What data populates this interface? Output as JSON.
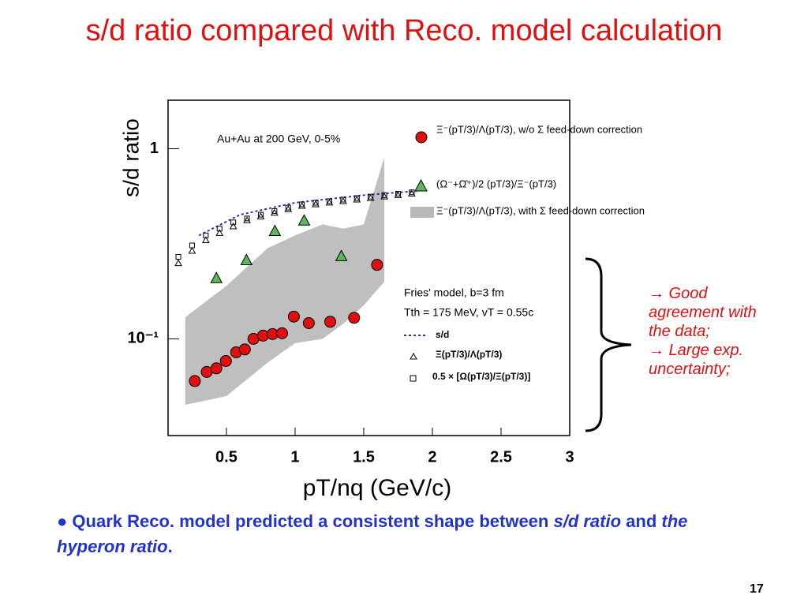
{
  "slide": {
    "title": "s/d ratio compared with Reco. model calculation",
    "note": [
      "→ Good agreement with the data;",
      "→ Large exp. uncertainty;"
    ],
    "bullet": [
      {
        "text": "Quark Reco. model predicted a consistent shape between ",
        "italic": false
      },
      {
        "text": "s/d ratio",
        "italic": true
      },
      {
        "text": " and ",
        "italic": false
      },
      {
        "text": "the hyperon ratio",
        "italic": true
      },
      {
        "text": ".",
        "italic": false
      }
    ],
    "page": "17"
  },
  "chart_data": {
    "type": "scatter",
    "xlabel": "pT/nq (GeV/c)",
    "ylabel": "s/d ratio",
    "log_y": true,
    "xlim": [
      0.075,
      3
    ],
    "ylim": [
      0.031,
      1.8
    ],
    "xticks": [
      0.5,
      1,
      1.5,
      2,
      2.5,
      3
    ],
    "yticks": [
      1,
      {
        "value": 0.1,
        "label": "10⁻¹"
      }
    ],
    "annotations": [
      "Au+Au at 200 GeV, 0-5%",
      "Fries' model, b=3 fm",
      "Tth = 175 MeV, vT = 0.55c"
    ],
    "series": [
      {
        "name": "Ξ⁻(pT/3)/Λ(pT/3), w/o Σ feed-down correction",
        "marker": "circle",
        "color": "#e01010",
        "x": [
          0.27,
          0.357,
          0.427,
          0.496,
          0.571,
          0.634,
          0.697,
          0.767,
          0.836,
          0.905,
          0.991,
          1.1,
          1.256,
          1.43,
          1.597
        ],
        "values": [
          0.06,
          0.067,
          0.07,
          0.0765,
          0.085,
          0.088,
          0.1,
          0.104,
          0.106,
          0.107,
          0.131,
          0.121,
          0.123,
          0.129,
          0.245
        ]
      },
      {
        "name": "(Ω⁻+Ω̄⁺)/2 (pT/3)/Ξ⁻(pT/3)",
        "marker": "triangle",
        "color": "#5cb85c",
        "x": [
          0.427,
          0.646,
          0.853,
          1.066,
          1.337
        ],
        "values": [
          0.209,
          0.26,
          0.37,
          0.42,
          0.273
        ]
      },
      {
        "name": "Ξ⁻(pT/3)/Λ(pT/3), with Σ feed-down correction",
        "marker": "band",
        "color": "#b8b8b8",
        "x": [
          0.2,
          0.5,
          0.8,
          1.0,
          1.2,
          1.35,
          1.5,
          1.65
        ],
        "lower": [
          0.045,
          0.05,
          0.075,
          0.095,
          0.1,
          0.12,
          0.15,
          0.2
        ],
        "values": [
          0.13,
          0.19,
          0.3,
          0.35,
          0.4,
          0.38,
          0.4,
          0.9
        ]
      },
      {
        "name": "s/d",
        "marker": "dotted",
        "color": "#2233cc",
        "x": [
          0.3,
          0.6,
          1.0,
          1.5,
          1.9
        ],
        "values": [
          0.35,
          0.45,
          0.52,
          0.57,
          0.6
        ]
      },
      {
        "name": "Ξ(pT/3)/Λ(pT/3)",
        "marker": "open-triangle",
        "color": "#000000",
        "x": [
          0.15,
          0.25,
          0.35,
          0.45,
          0.55,
          0.65,
          0.75,
          0.85,
          0.95,
          1.05,
          1.15,
          1.25,
          1.35,
          1.45,
          1.55,
          1.65,
          1.75,
          1.85
        ],
        "values": [
          0.25,
          0.29,
          0.33,
          0.36,
          0.39,
          0.42,
          0.44,
          0.46,
          0.48,
          0.5,
          0.51,
          0.52,
          0.53,
          0.54,
          0.55,
          0.56,
          0.57,
          0.58
        ]
      },
      {
        "name": "0.5 × [Ω(pT/3)/Ξ(pT/3)]",
        "marker": "open-square",
        "color": "#000000",
        "x": [
          0.15,
          0.25,
          0.35,
          0.45,
          0.55,
          0.65,
          0.75,
          0.85,
          0.95,
          1.05,
          1.15,
          1.25,
          1.35,
          1.45,
          1.55,
          1.65,
          1.75,
          1.85
        ],
        "values": [
          0.27,
          0.31,
          0.35,
          0.38,
          0.41,
          0.43,
          0.45,
          0.47,
          0.49,
          0.51,
          0.52,
          0.53,
          0.54,
          0.55,
          0.56,
          0.57,
          0.58,
          0.59
        ]
      }
    ]
  }
}
